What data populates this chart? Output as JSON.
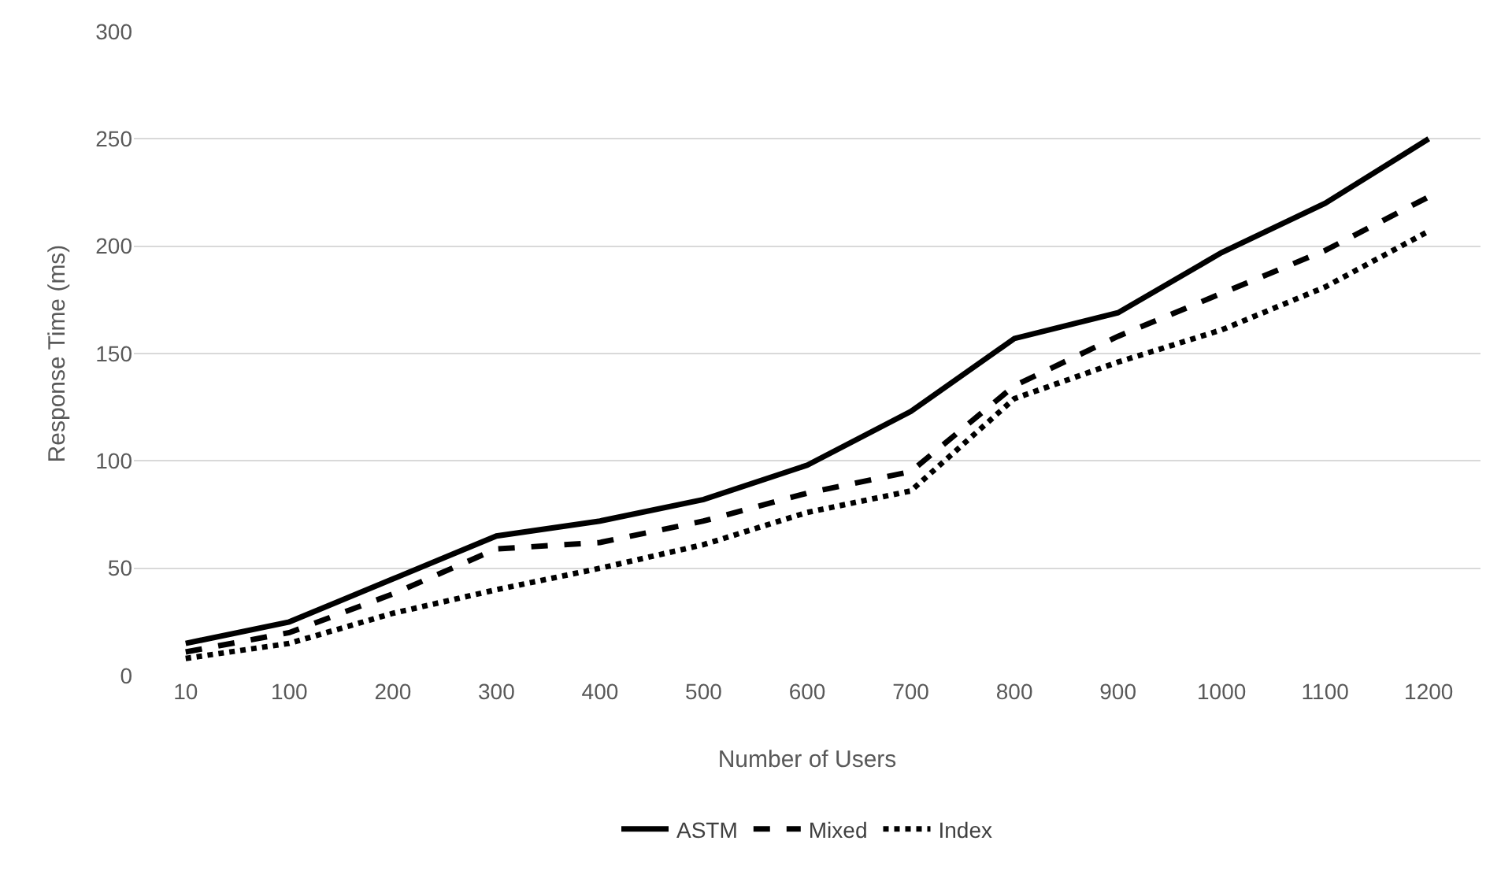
{
  "chart_data": {
    "type": "line",
    "xlabel": "Number of Users",
    "ylabel": "Response Time (ms)",
    "categories": [
      "10",
      "100",
      "200",
      "300",
      "400",
      "500",
      "600",
      "700",
      "800",
      "900",
      "1000",
      "1100",
      "1200"
    ],
    "series": [
      {
        "name": "ASTM",
        "color": "#000000",
        "line_style": "solid",
        "values": [
          15,
          25,
          45,
          65,
          72,
          82,
          98,
          123,
          157,
          169,
          197,
          220,
          250
        ]
      },
      {
        "name": "Mixed",
        "color": "#000000",
        "line_style": "dashed",
        "values": [
          11,
          20,
          38,
          59,
          62,
          72,
          85,
          95,
          135,
          158,
          178,
          198,
          223
        ]
      },
      {
        "name": "Index",
        "color": "#000000",
        "line_style": "dotted",
        "values": [
          8,
          15,
          29,
          40,
          50,
          61,
          76,
          86,
          129,
          146,
          161,
          181,
          207
        ]
      }
    ],
    "ylim": [
      0,
      300
    ],
    "yticks": [
      0,
      50,
      100,
      150,
      200,
      250,
      300
    ],
    "grid": "y",
    "legend": "bottom",
    "marker": "none"
  }
}
